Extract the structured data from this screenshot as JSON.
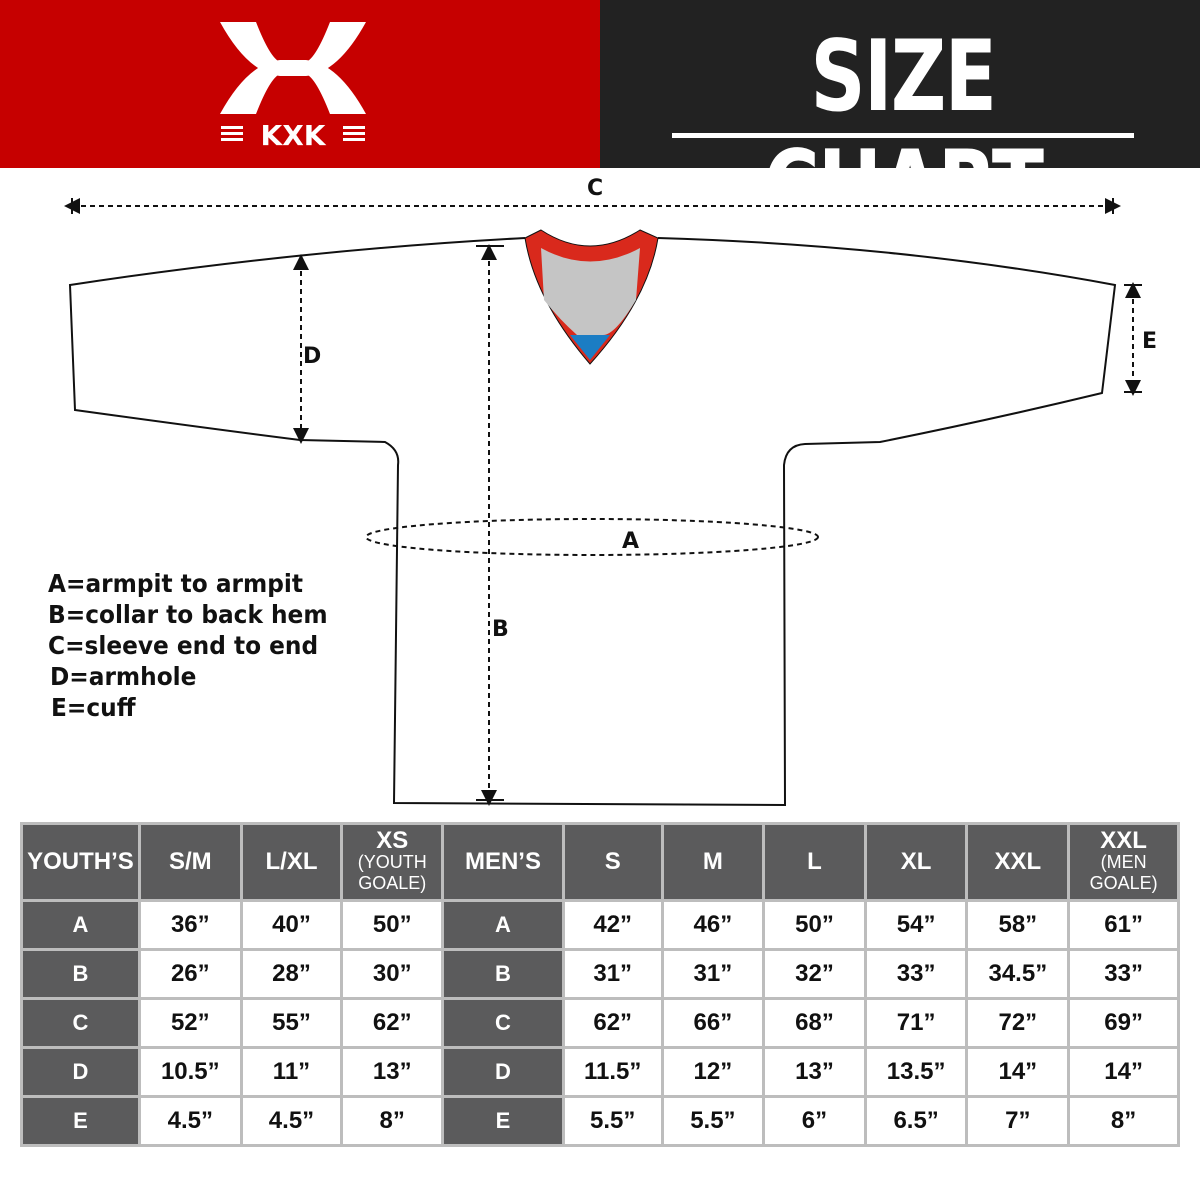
{
  "brand": {
    "logo_text": "KXK",
    "color": "#c60000"
  },
  "header": {
    "title": "SIZE CHART"
  },
  "diagram": {
    "labels": {
      "a": "A",
      "b": "B",
      "c": "C",
      "d": "D",
      "e": "E"
    },
    "legend": [
      "A=armpit to armpit",
      "B=collar to back hem",
      "C=sleeve end to end",
      "D=armhole",
      "E=cuff"
    ]
  },
  "table": {
    "youth_header": "YOUTH’S",
    "youth_sizes": [
      {
        "main": "S/M",
        "sub": ""
      },
      {
        "main": "L/XL",
        "sub": ""
      },
      {
        "main": "XS",
        "sub": "(YOUTH GOALE)"
      }
    ],
    "men_header": "MEN’S",
    "men_sizes": [
      {
        "main": "S",
        "sub": ""
      },
      {
        "main": "M",
        "sub": ""
      },
      {
        "main": "L",
        "sub": ""
      },
      {
        "main": "XL",
        "sub": ""
      },
      {
        "main": "XXL",
        "sub": ""
      },
      {
        "main": "XXL",
        "sub": "(MEN GOALE)"
      }
    ],
    "rows": [
      {
        "label": "A",
        "youth": [
          "36”",
          "40”",
          "50”"
        ],
        "men": [
          "42”",
          "46”",
          "50”",
          "54”",
          "58”",
          "61”"
        ]
      },
      {
        "label": "B",
        "youth": [
          "26”",
          "28”",
          "30”"
        ],
        "men": [
          "31”",
          "31”",
          "32”",
          "33”",
          "34.5”",
          "33”"
        ]
      },
      {
        "label": "C",
        "youth": [
          "52”",
          "55”",
          "62”"
        ],
        "men": [
          "62”",
          "66”",
          "68”",
          "71”",
          "72”",
          "69”"
        ]
      },
      {
        "label": "D",
        "youth": [
          "10.5”",
          "11”",
          "13”"
        ],
        "men": [
          "11.5”",
          "12”",
          "13”",
          "13.5”",
          "14”",
          "14”"
        ]
      },
      {
        "label": "E",
        "youth": [
          "4.5”",
          "4.5”",
          "8”"
        ],
        "men": [
          "5.5”",
          "5.5”",
          "6”",
          "6.5”",
          "7”",
          "8”"
        ]
      }
    ]
  }
}
